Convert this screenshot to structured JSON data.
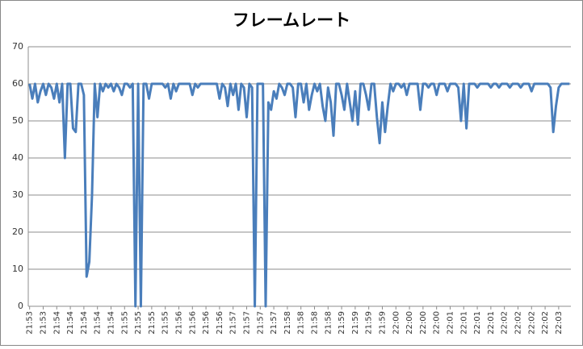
{
  "chart_data": {
    "type": "line",
    "title": "フレームレート",
    "categories": [
      "21:53",
      null,
      null,
      null,
      null,
      "21:53",
      null,
      null,
      null,
      null,
      "21:54",
      null,
      null,
      null,
      null,
      "21:54",
      null,
      null,
      null,
      null,
      "21:54",
      null,
      null,
      null,
      null,
      "21:54",
      null,
      null,
      null,
      null,
      "21:54",
      null,
      null,
      null,
      null,
      "21:55",
      null,
      null,
      null,
      null,
      "21:55",
      null,
      null,
      null,
      null,
      "21:55",
      null,
      null,
      null,
      null,
      "21:55",
      null,
      null,
      null,
      null,
      "21:56",
      null,
      null,
      null,
      null,
      "21:56",
      null,
      null,
      null,
      null,
      "21:56",
      null,
      null,
      null,
      null,
      "21:56",
      null,
      null,
      null,
      null,
      "21:57",
      null,
      null,
      null,
      null,
      "21:57",
      null,
      null,
      null,
      null,
      "21:57",
      null,
      null,
      null,
      null,
      "21:57",
      null,
      null,
      null,
      null,
      "21:58",
      null,
      null,
      null,
      null,
      "21:58",
      null,
      null,
      null,
      null,
      "21:58",
      null,
      null,
      null,
      null,
      "21:58",
      null,
      null,
      null,
      null,
      "21:59",
      null,
      null,
      null,
      null,
      "21:59",
      null,
      null,
      null,
      null,
      "21:59",
      null,
      null,
      null,
      null,
      "21:59",
      null,
      null,
      null,
      null,
      "22:00",
      null,
      null,
      null,
      null,
      "22:00",
      null,
      null,
      null,
      null,
      "22:00",
      null,
      null,
      null,
      null,
      "22:00",
      null,
      null,
      null,
      null,
      "22:01",
      null,
      null,
      null,
      null,
      "22:01",
      null,
      null,
      null,
      null,
      "22:01",
      null,
      null,
      null,
      null,
      "22:01",
      null,
      null,
      null,
      null,
      "22:02",
      null,
      null,
      null,
      null,
      "22:02",
      null,
      null,
      null,
      null,
      "22:02",
      null,
      null,
      null,
      null,
      "22:02",
      null,
      null,
      null,
      null,
      "22:03",
      null,
      null,
      null,
      null
    ],
    "values": [
      60,
      56,
      60,
      55,
      58,
      60,
      57,
      60,
      59,
      56,
      60,
      55,
      60,
      40,
      60,
      60,
      48,
      47,
      60,
      60,
      57,
      8,
      12,
      30,
      60,
      51,
      60,
      58,
      60,
      59,
      60,
      58,
      60,
      59,
      57,
      60,
      60,
      59,
      60,
      0,
      60,
      0,
      60,
      60,
      56,
      60,
      60,
      60,
      60,
      60,
      59,
      60,
      56,
      60,
      58,
      60,
      60,
      60,
      60,
      60,
      57,
      60,
      59,
      60,
      60,
      60,
      60,
      60,
      60,
      60,
      56,
      60,
      59,
      54,
      60,
      57,
      60,
      53,
      60,
      59,
      51,
      60,
      59,
      0,
      60,
      60,
      60,
      0,
      55,
      53,
      58,
      56,
      60,
      59,
      57,
      60,
      60,
      59,
      51,
      60,
      60,
      55,
      60,
      53,
      57,
      60,
      58,
      60,
      54,
      50,
      59,
      55,
      46,
      60,
      60,
      57,
      53,
      60,
      55,
      50,
      58,
      49,
      60,
      60,
      57,
      53,
      60,
      60,
      51,
      44,
      55,
      47,
      54,
      60,
      58,
      60,
      60,
      59,
      60,
      57,
      60,
      60,
      60,
      60,
      53,
      60,
      60,
      59,
      60,
      60,
      57,
      60,
      60,
      60,
      58,
      60,
      60,
      60,
      59,
      50,
      60,
      48,
      60,
      60,
      60,
      59,
      60,
      60,
      60,
      60,
      59,
      60,
      60,
      59,
      60,
      60,
      60,
      59,
      60,
      60,
      60,
      59,
      60,
      60,
      60,
      58,
      60,
      60,
      60,
      60,
      60,
      60,
      59,
      47,
      54,
      59,
      60,
      60,
      60,
      60
    ],
    "color": "#4a7ebb",
    "ylim": [
      0,
      70
    ],
    "yticks": [
      0,
      10,
      20,
      30,
      40,
      50,
      60,
      70
    ],
    "grid": true
  }
}
